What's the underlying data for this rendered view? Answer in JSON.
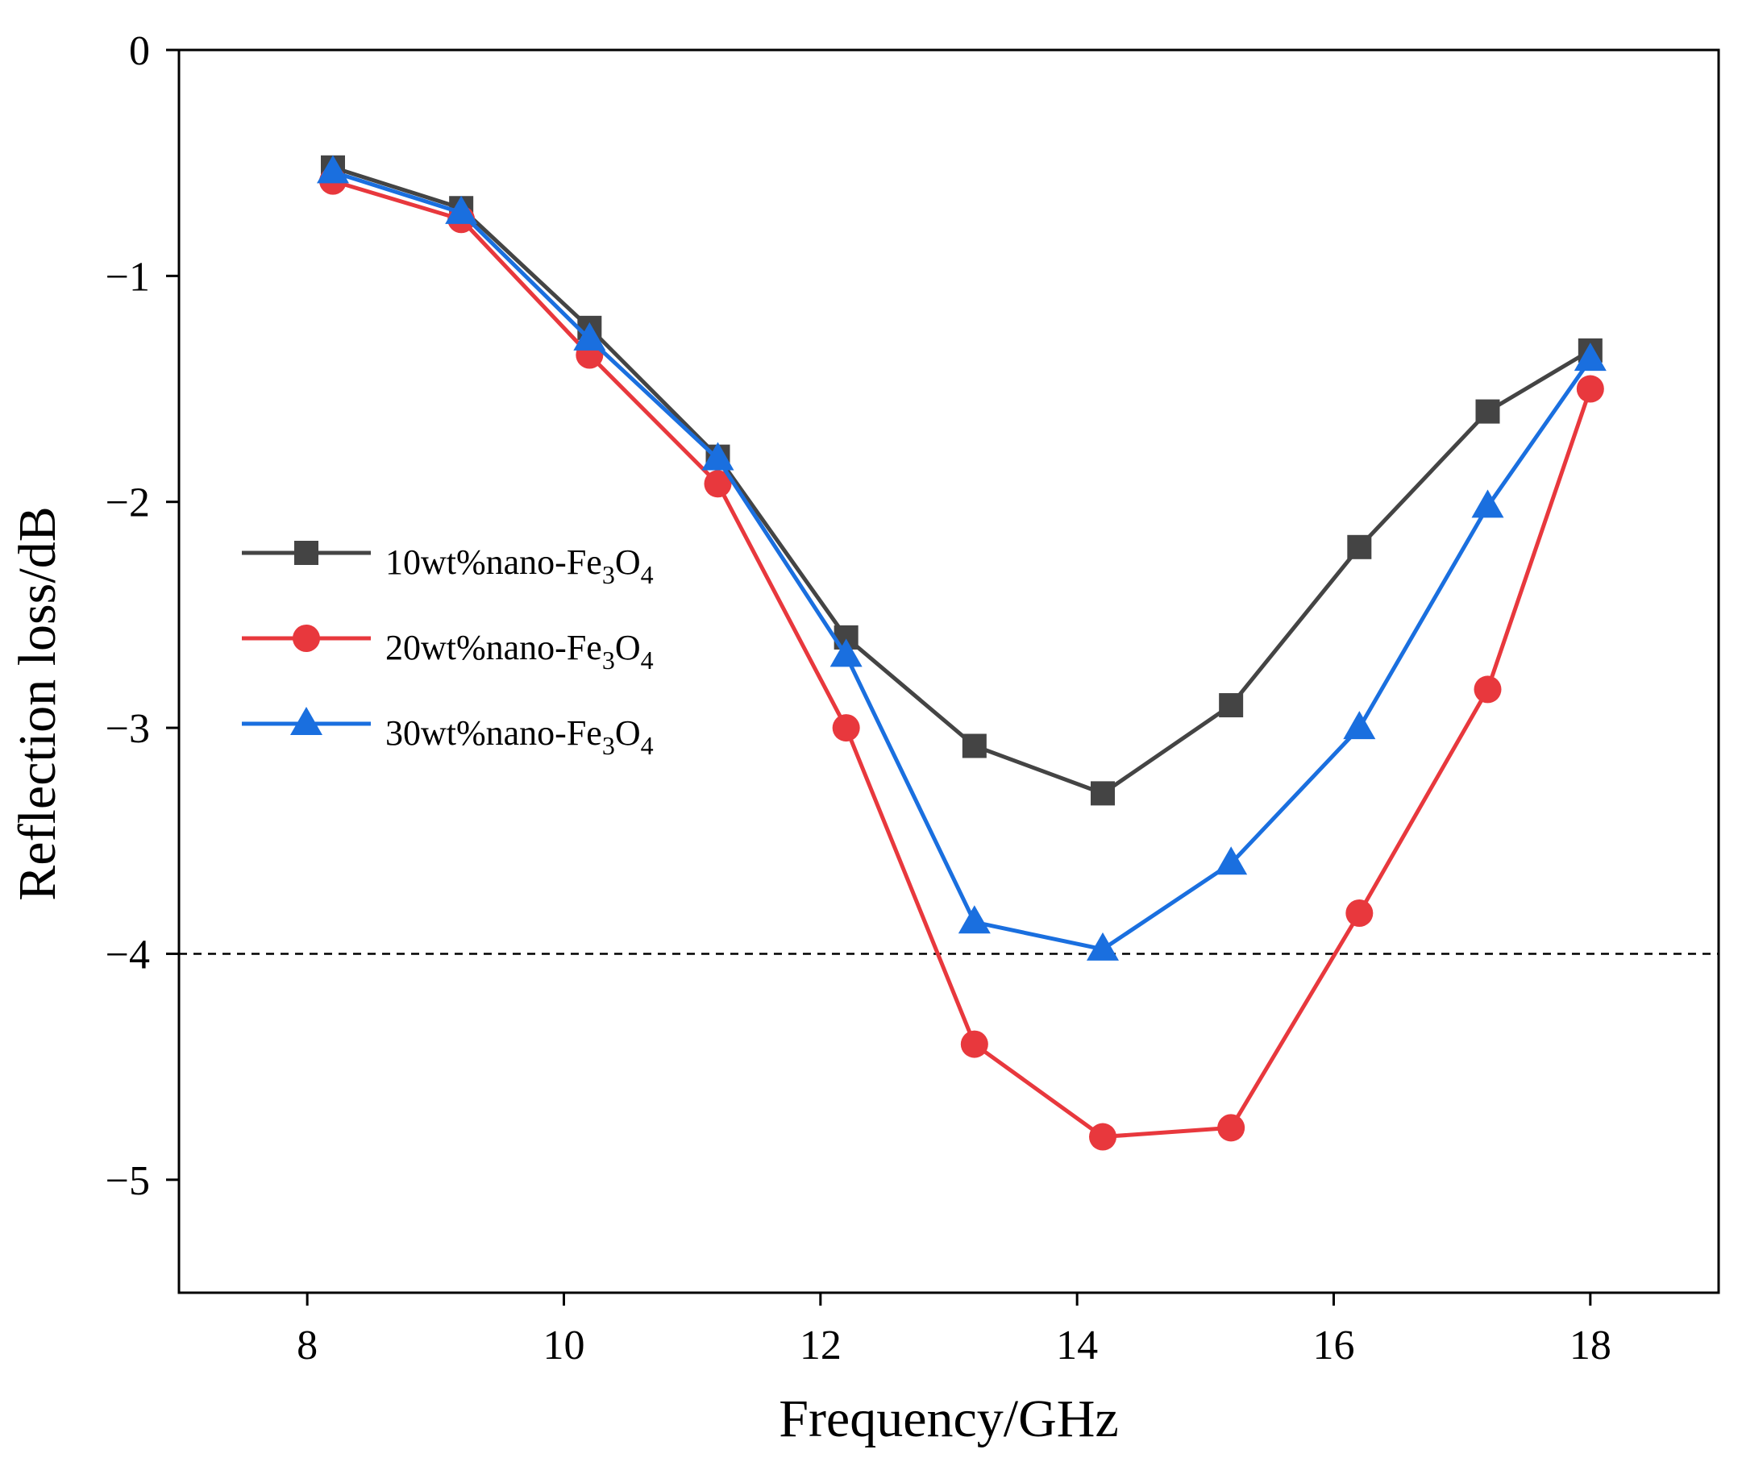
{
  "chart_data": {
    "type": "line",
    "title": "",
    "xlabel": "Frequency/GHz",
    "ylabel": "Reflection loss/dB",
    "xlim": [
      7,
      19
    ],
    "ylim": [
      -5.5,
      0
    ],
    "xticks": [
      8,
      10,
      12,
      14,
      16,
      18
    ],
    "yticks": [
      0,
      -1,
      -2,
      -3,
      -4,
      -5
    ],
    "xtick_labels": [
      "8",
      "10",
      "12",
      "14",
      "16",
      "18"
    ],
    "ytick_labels": [
      "0",
      "−1",
      "−2",
      "−3",
      "−4",
      "−5"
    ],
    "reference_line": {
      "y": -4,
      "style": "dashed"
    },
    "x": [
      8.2,
      9.2,
      10.2,
      11.2,
      12.2,
      13.2,
      14.2,
      15.2,
      16.2,
      17.2,
      18.0
    ],
    "series": [
      {
        "name": "10wt%nano-Fe3O4",
        "legend_main": "10wt%nano-Fe",
        "legend_sub1": "3",
        "legend_mid": "O",
        "legend_sub2": "4",
        "color": "#444444",
        "marker": "square",
        "values": [
          -0.52,
          -0.7,
          -1.23,
          -1.8,
          -2.6,
          -3.08,
          -3.29,
          -2.9,
          -2.2,
          -1.6,
          -1.33
        ]
      },
      {
        "name": "20wt%nano-Fe3O4",
        "legend_main": "20wt%nano-Fe",
        "legend_sub1": "3",
        "legend_mid": "O",
        "legend_sub2": "4",
        "color": "#e8383d",
        "marker": "circle",
        "values": [
          -0.58,
          -0.75,
          -1.35,
          -1.92,
          -3.0,
          -4.4,
          -4.81,
          -4.77,
          -3.82,
          -2.83,
          -1.5
        ]
      },
      {
        "name": "30wt%nano-Fe3O4",
        "legend_main": "30wt%nano-Fe",
        "legend_sub1": "3",
        "legend_mid": "O",
        "legend_sub2": "4",
        "color": "#1a6fdf",
        "marker": "triangle",
        "values": [
          -0.54,
          -0.72,
          -1.28,
          -1.81,
          -2.68,
          -3.86,
          -3.98,
          -3.6,
          -3.0,
          -2.02,
          -1.37
        ]
      }
    ],
    "legend_position": "left-middle"
  }
}
